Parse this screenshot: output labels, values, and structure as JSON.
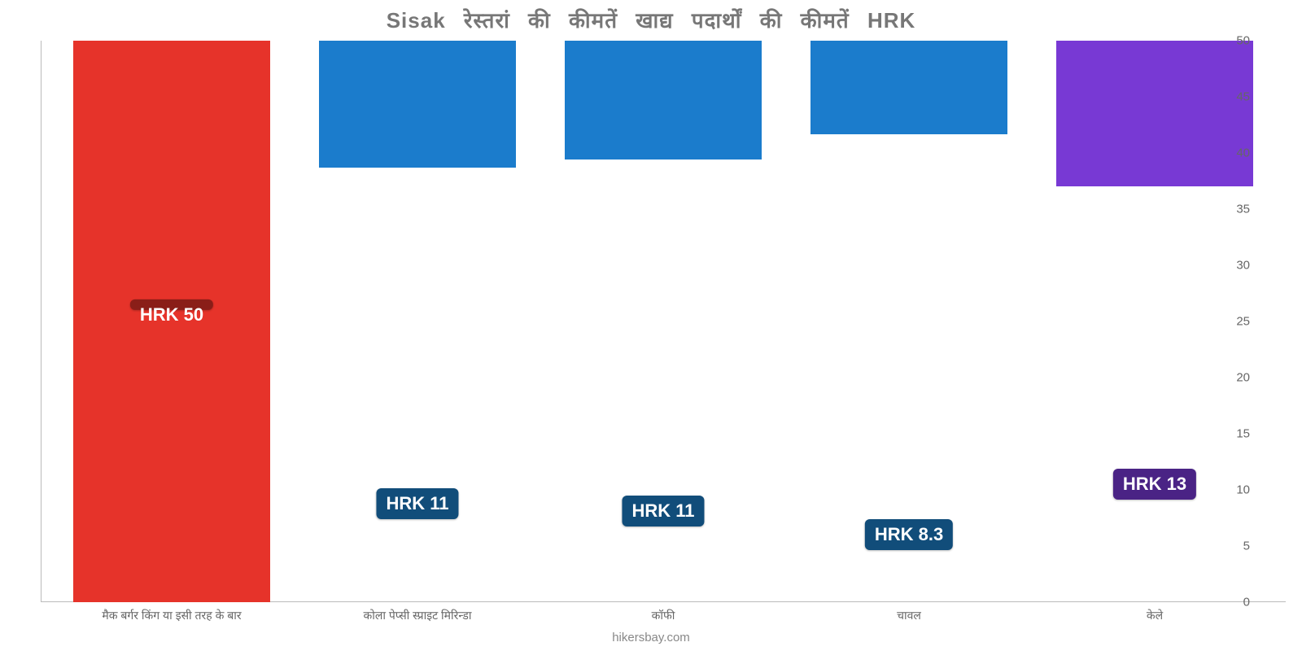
{
  "chart": {
    "type": "bar",
    "title": "Sisak रेस्तरां की कीमतें खाद्य पदार्थों की कीमतें HRK",
    "title_color": "#777777",
    "title_fontsize": 26,
    "background_color": "#ffffff",
    "axis_color": "#bbbbbb",
    "tick_label_color": "#666666",
    "tick_label_fontsize": 15,
    "ylim": [
      0,
      50
    ],
    "ytick_step": 5,
    "yticks": [
      0,
      5,
      10,
      15,
      20,
      25,
      30,
      35,
      40,
      45,
      50
    ],
    "bar_width_pct": 80,
    "categories": [
      "मैक बर्गर किंग या इसी तरह के बार",
      "कोला पेप्सी स्प्राइट मिरिन्डा",
      "कॉफी",
      "चावल",
      "केले"
    ],
    "values": [
      50,
      11.3,
      10.6,
      8.3,
      13
    ],
    "value_labels": [
      "HRK 50",
      "HRK 11",
      "HRK 11",
      "HRK 8.3",
      "HRK 13"
    ],
    "bar_colors": [
      "#e6332a",
      "#1b7ccc",
      "#1b7ccc",
      "#1b7ccc",
      "#7839d4"
    ],
    "badge_colors": [
      "#8a1e18",
      "#114d7a",
      "#114d7a",
      "#114d7a",
      "#4a2385"
    ],
    "badge_text_color": "#ffffff",
    "badge_fontsize": 22,
    "attribution": "hikersbay.com",
    "attribution_color": "#888888"
  }
}
